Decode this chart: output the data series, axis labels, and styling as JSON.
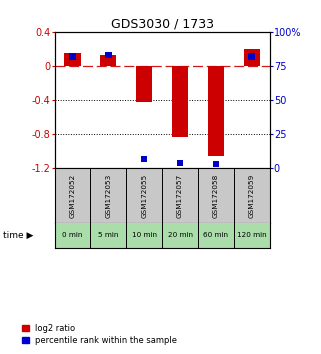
{
  "title": "GDS3030 / 1733",
  "samples": [
    "GSM172052",
    "GSM172053",
    "GSM172055",
    "GSM172057",
    "GSM172058",
    "GSM172059"
  ],
  "time_labels": [
    "0 min",
    "5 min",
    "10 min",
    "20 min",
    "60 min",
    "120 min"
  ],
  "log2_ratio": [
    0.15,
    0.13,
    -0.42,
    -0.83,
    -1.05,
    0.2
  ],
  "percentile_rank": [
    82,
    83,
    7,
    4,
    3,
    82
  ],
  "bar_color_red": "#cc0000",
  "bar_color_blue": "#0000cc",
  "ylim_left": [
    -1.2,
    0.4
  ],
  "ylim_right": [
    0,
    100
  ],
  "yticks_left": [
    0.4,
    0.0,
    -0.4,
    -0.8,
    -1.2
  ],
  "yticks_right": [
    100,
    75,
    50,
    25,
    0
  ],
  "ytick_labels_left": [
    "0.4",
    "0",
    "-0.4",
    "-0.8",
    "-1.2"
  ],
  "ytick_labels_right": [
    "100%",
    "75",
    "50",
    "25",
    "0"
  ],
  "hline_y": 0,
  "dotted_lines": [
    -0.4,
    -0.8
  ],
  "bg_color": "#ffffff",
  "plot_bg": "#ffffff",
  "header_bg": "#c8c8c8",
  "time_bg": "#aaddaa",
  "legend_red_label": "log2 ratio",
  "legend_blue_label": "percentile rank within the sample"
}
